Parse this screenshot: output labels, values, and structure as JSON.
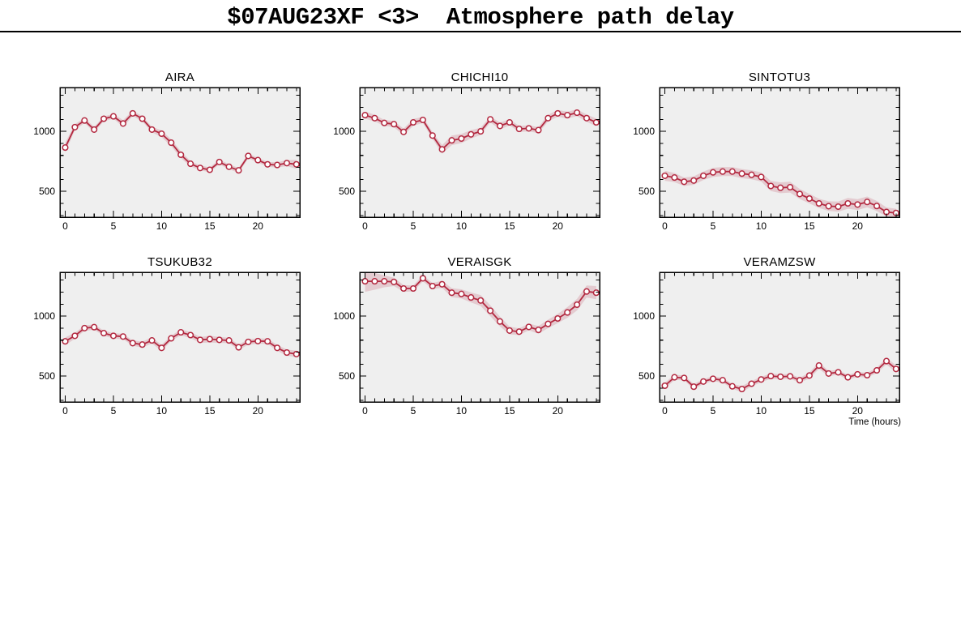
{
  "header": {
    "title": "$07AUG23XF <3>  Atmosphere path delay"
  },
  "colors": {
    "line": "#b32940",
    "band": "rgba(179, 41, 64, 0.18)",
    "plot_bg": "#efefef",
    "frame": "#000000",
    "marker_fill": "#ffffff",
    "text": "#000000"
  },
  "chart_data": [
    {
      "type": "line",
      "title": "AIRA",
      "x": [
        0,
        1,
        2,
        3,
        4,
        5,
        6,
        7,
        8,
        9,
        10,
        11,
        12,
        13,
        14,
        15,
        16,
        17,
        18,
        19,
        20,
        21,
        22,
        23,
        24
      ],
      "values": [
        865,
        1035,
        1090,
        1015,
        1105,
        1125,
        1065,
        1150,
        1105,
        1015,
        980,
        905,
        805,
        730,
        695,
        680,
        745,
        705,
        675,
        795,
        760,
        725,
        720,
        735,
        725
      ],
      "error_halfwidth": [
        40,
        25,
        20,
        22,
        20,
        20,
        28,
        22,
        22,
        22,
        28,
        28,
        28,
        22,
        20,
        20,
        20,
        20,
        20,
        20,
        20,
        20,
        22,
        25,
        38
      ],
      "xlim": [
        -0.55,
        24.35
      ],
      "ylim": [
        285,
        1365
      ],
      "xticks": [
        0,
        5,
        10,
        15,
        20
      ],
      "yticks": [
        500,
        1000
      ],
      "x_minor_step": 1,
      "y_minor_step": 100,
      "xlabel": "",
      "marker": "open-circle",
      "grid": false
    },
    {
      "type": "line",
      "title": "CHICHI10",
      "x": [
        0,
        1,
        2,
        3,
        4,
        5,
        6,
        7,
        8,
        9,
        10,
        11,
        12,
        13,
        14,
        15,
        16,
        17,
        18,
        19,
        20,
        21,
        22,
        23,
        24
      ],
      "values": [
        1135,
        1110,
        1070,
        1060,
        995,
        1075,
        1095,
        965,
        850,
        925,
        940,
        975,
        1000,
        1100,
        1045,
        1075,
        1020,
        1025,
        1010,
        1110,
        1150,
        1135,
        1155,
        1110,
        1075
      ],
      "error_halfwidth": [
        30,
        28,
        25,
        25,
        28,
        28,
        25,
        28,
        35,
        40,
        38,
        35,
        30,
        25,
        28,
        25,
        25,
        25,
        25,
        28,
        28,
        28,
        28,
        30,
        32
      ],
      "xlim": [
        -0.55,
        24.35
      ],
      "ylim": [
        285,
        1365
      ],
      "xticks": [
        0,
        5,
        10,
        15,
        20
      ],
      "yticks": [
        500,
        1000
      ],
      "x_minor_step": 1,
      "y_minor_step": 100,
      "xlabel": "",
      "marker": "open-circle",
      "grid": false
    },
    {
      "type": "line",
      "title": "SINTOTU3",
      "x": [
        0,
        1,
        2,
        3,
        4,
        5,
        6,
        7,
        8,
        9,
        10,
        11,
        12,
        13,
        14,
        15,
        16,
        17,
        18,
        19,
        20,
        21,
        22,
        23,
        24
      ],
      "values": [
        630,
        615,
        580,
        590,
        630,
        658,
        665,
        665,
        648,
        638,
        620,
        545,
        530,
        535,
        478,
        440,
        400,
        377,
        373,
        400,
        390,
        412,
        378,
        328,
        320
      ],
      "error_halfwidth": [
        42,
        38,
        35,
        35,
        35,
        38,
        38,
        38,
        38,
        38,
        38,
        42,
        45,
        45,
        42,
        40,
        38,
        40,
        42,
        45,
        45,
        45,
        42,
        38,
        35
      ],
      "xlim": [
        -0.55,
        24.35
      ],
      "ylim": [
        285,
        1365
      ],
      "xticks": [
        0,
        5,
        10,
        15,
        20
      ],
      "yticks": [
        500,
        1000
      ],
      "x_minor_step": 1,
      "y_minor_step": 100,
      "xlabel": "",
      "marker": "open-circle",
      "grid": false
    },
    {
      "type": "line",
      "title": "TSUKUB32",
      "x": [
        0,
        1,
        2,
        3,
        4,
        5,
        6,
        7,
        8,
        9,
        10,
        11,
        12,
        13,
        14,
        15,
        16,
        17,
        18,
        19,
        20,
        21,
        22,
        23,
        24
      ],
      "values": [
        790,
        836,
        900,
        908,
        858,
        836,
        830,
        775,
        763,
        797,
        735,
        815,
        865,
        842,
        802,
        808,
        802,
        797,
        740,
        785,
        792,
        790,
        735,
        696,
        684
      ],
      "error_halfwidth": [
        32,
        25,
        22,
        22,
        22,
        22,
        22,
        22,
        25,
        25,
        25,
        22,
        25,
        25,
        25,
        28,
        25,
        22,
        22,
        22,
        22,
        22,
        25,
        25,
        28
      ],
      "xlim": [
        -0.55,
        24.35
      ],
      "ylim": [
        285,
        1365
      ],
      "xticks": [
        0,
        5,
        10,
        15,
        20
      ],
      "yticks": [
        500,
        1000
      ],
      "x_minor_step": 1,
      "y_minor_step": 100,
      "xlabel": "",
      "marker": "open-circle",
      "grid": false
    },
    {
      "type": "line",
      "title": "VERAISGK",
      "x": [
        0,
        1,
        2,
        3,
        4,
        5,
        6,
        7,
        8,
        9,
        10,
        11,
        12,
        13,
        14,
        15,
        16,
        17,
        18,
        19,
        20,
        21,
        22,
        23,
        24
      ],
      "values": [
        1290,
        1290,
        1290,
        1285,
        1230,
        1230,
        1315,
        1250,
        1265,
        1195,
        1185,
        1155,
        1130,
        1045,
        955,
        880,
        870,
        910,
        885,
        935,
        980,
        1030,
        1095,
        1205,
        1195
      ],
      "error_halfwidth": [
        88,
        70,
        50,
        35,
        28,
        25,
        25,
        25,
        30,
        38,
        38,
        42,
        45,
        45,
        40,
        32,
        28,
        28,
        32,
        35,
        38,
        45,
        48,
        50,
        55
      ],
      "xlim": [
        -0.55,
        24.35
      ],
      "ylim": [
        285,
        1365
      ],
      "xticks": [
        0,
        5,
        10,
        15,
        20
      ],
      "yticks": [
        500,
        1000
      ],
      "x_minor_step": 1,
      "y_minor_step": 100,
      "xlabel": "",
      "marker": "open-circle",
      "grid": false
    },
    {
      "type": "line",
      "title": "VERAMZSW",
      "x": [
        0,
        1,
        2,
        3,
        4,
        5,
        6,
        7,
        8,
        9,
        10,
        11,
        12,
        13,
        14,
        15,
        16,
        17,
        18,
        19,
        20,
        21,
        22,
        23,
        24
      ],
      "values": [
        420,
        490,
        485,
        412,
        455,
        478,
        466,
        415,
        392,
        437,
        472,
        500,
        495,
        498,
        466,
        505,
        588,
        522,
        532,
        490,
        515,
        508,
        548,
        625,
        560
      ],
      "error_halfwidth": [
        25,
        22,
        20,
        22,
        20,
        20,
        20,
        20,
        25,
        22,
        22,
        22,
        20,
        20,
        20,
        25,
        28,
        22,
        20,
        20,
        20,
        20,
        22,
        28,
        30
      ],
      "xlim": [
        -0.55,
        24.35
      ],
      "ylim": [
        285,
        1365
      ],
      "xticks": [
        0,
        5,
        10,
        15,
        20
      ],
      "yticks": [
        500,
        1000
      ],
      "x_minor_step": 1,
      "y_minor_step": 100,
      "xlabel": "Time (hours)",
      "marker": "open-circle",
      "grid": false
    }
  ]
}
